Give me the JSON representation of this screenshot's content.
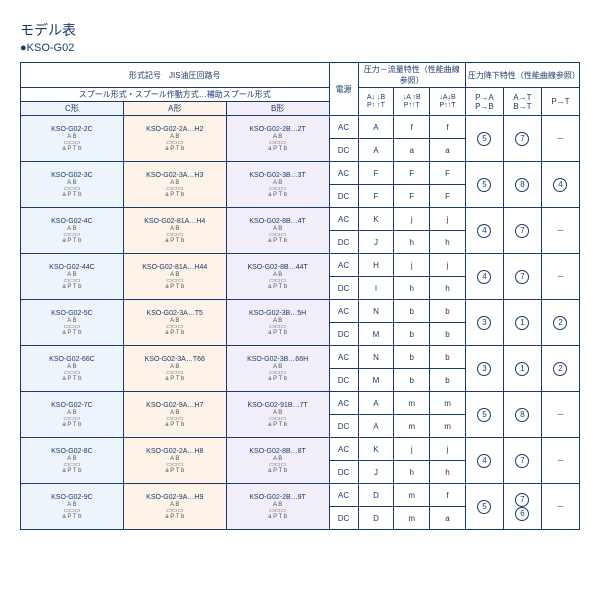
{
  "title": "モデル表",
  "subtitle": "●KSO-G02",
  "headers": {
    "form_line1": "形式記号　JIS油圧回路号",
    "form_line2": "スプール形式・スプール作動方式…補助スプール形式",
    "c_form": "C形",
    "a_form": "A形",
    "b_form": "B形",
    "power": "電源",
    "pressure_flow": "圧力－流量特性（性能曲線参照）",
    "pressure_drop": "圧力降下特性（性能曲線参照）",
    "pa": "P→A\nP→B",
    "at": "A→T\nB→T",
    "pt": "P→T",
    "sym1": "A↓ ↓B\nP↑ ↑T",
    "sym2": "↓A ↑B\nP↑↑T",
    "sym3": "↓A↓B\nP↑↑T"
  },
  "symline": "A B\n▭▭▭\na P T b",
  "rows": [
    {
      "c": "KSO-G02-2C",
      "a": "KSO-G02-2A…H2",
      "b": "KSO-G02-2B…2T",
      "vals": [
        [
          "AC",
          "A",
          "f",
          "f"
        ],
        [
          "DC",
          "A",
          "a",
          "a"
        ]
      ],
      "drop": [
        "⑤",
        "⑦",
        "－"
      ]
    },
    {
      "c": "KSO-G02-3C",
      "a": "KSO-G02-3A…H3",
      "b": "KSO-G02-3B…3T",
      "vals": [
        [
          "AC",
          "F",
          "F",
          "F"
        ],
        [
          "DC",
          "F",
          "F",
          "F"
        ]
      ],
      "drop": [
        "⑤",
        "⑧",
        "④"
      ]
    },
    {
      "c": "KSO-G02-4C",
      "a": "KSO-G02-81A…H4",
      "b": "KSO-G02-8B…4T",
      "vals": [
        [
          "AC",
          "K",
          "j",
          "j"
        ],
        [
          "DC",
          "J",
          "h",
          "h"
        ]
      ],
      "drop": [
        "④",
        "⑦",
        "－"
      ]
    },
    {
      "c": "KSO-G02-44C",
      "a": "KSO-G02-81A…H44",
      "b": "KSO-G02-8B…44T",
      "vals": [
        [
          "AC",
          "H",
          "j",
          "j"
        ],
        [
          "DC",
          "I",
          "h",
          "h"
        ]
      ],
      "drop": [
        "④",
        "⑦",
        "－"
      ]
    },
    {
      "c": "KSO-G02-5C",
      "a": "KSO-G02-3A…T5",
      "b": "KSO-G02-3B…5H",
      "vals": [
        [
          "AC",
          "N",
          "b",
          "b"
        ],
        [
          "DC",
          "M",
          "b",
          "b"
        ]
      ],
      "drop": [
        "③",
        "①",
        "②"
      ]
    },
    {
      "c": "KSO-G02-66C",
      "a": "KSO-G02-3A…T66",
      "b": "KSO-G02-3B…66H",
      "vals": [
        [
          "AC",
          "N",
          "b",
          "b"
        ],
        [
          "DC",
          "M",
          "b",
          "b"
        ]
      ],
      "drop": [
        "③",
        "①",
        "②"
      ]
    },
    {
      "c": "KSO-G02-7C",
      "a": "KSO-G02-9A…H7",
      "b": "KSO-G02-91B…7T",
      "vals": [
        [
          "AC",
          "A",
          "m",
          "m"
        ],
        [
          "DC",
          "A",
          "m",
          "m"
        ]
      ],
      "drop": [
        "⑤",
        "⑧",
        "－"
      ]
    },
    {
      "c": "KSO-G02-8C",
      "a": "KSO-G02-2A…H8",
      "b": "KSO-G02-8B…8T",
      "vals": [
        [
          "AC",
          "K",
          "j",
          "j"
        ],
        [
          "DC",
          "J",
          "h",
          "h"
        ]
      ],
      "drop": [
        "④",
        "⑦",
        "－"
      ]
    },
    {
      "c": "KSO-G02-9C",
      "a": "KSO-G02-9A…H9",
      "b": "KSO-G02-2B…9T",
      "vals": [
        [
          "AC",
          "D",
          "m",
          "f"
        ],
        [
          "DC",
          "D",
          "m",
          "a"
        ]
      ],
      "drop": [
        "⑤",
        "⑦\n⑥",
        "－"
      ]
    }
  ]
}
